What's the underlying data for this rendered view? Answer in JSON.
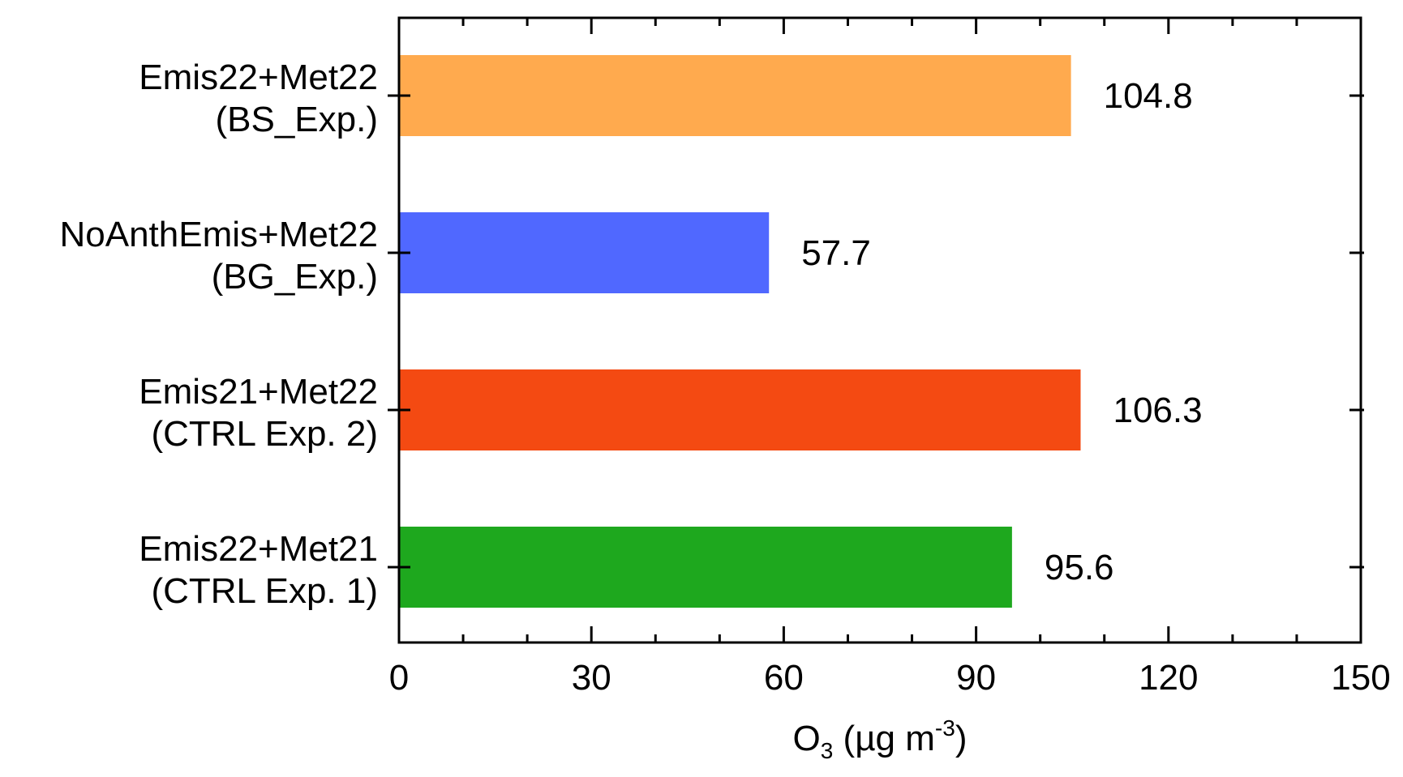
{
  "chart_data": {
    "type": "bar",
    "orientation": "horizontal",
    "categories": [
      {
        "line1": "Emis22+Met22",
        "line2": "(BS_Exp.)"
      },
      {
        "line1": "NoAnthEmis+Met22",
        "line2": "(BG_Exp.)"
      },
      {
        "line1": "Emis21+Met22",
        "line2": "(CTRL Exp. 2)"
      },
      {
        "line1": "Emis22+Met21",
        "line2": "(CTRL Exp. 1)"
      }
    ],
    "values": [
      104.8,
      57.7,
      106.3,
      95.6
    ],
    "value_labels": [
      "104.8",
      "57.7",
      "106.3",
      "95.6"
    ],
    "colors": [
      "#FFAA4E",
      "#5068FF",
      "#F44A12",
      "#1EA81E"
    ],
    "xlabel": {
      "main": "O",
      "subscript": "3",
      "unit_open": " (µg m",
      "superscript": "-3",
      "unit_close": ")"
    },
    "xlim": [
      0,
      150
    ],
    "xticks": [
      "0",
      "30",
      "60",
      "90",
      "120",
      "150"
    ],
    "grid": false
  }
}
